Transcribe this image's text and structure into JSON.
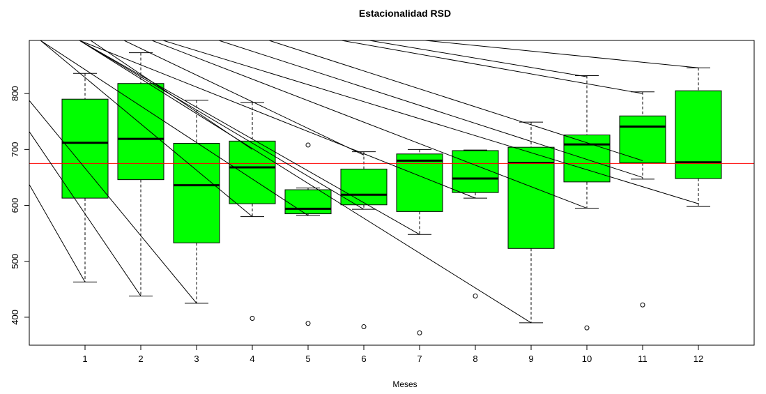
{
  "chart_data": {
    "type": "boxplot",
    "title": "Estacionalidad RSD",
    "xlabel": "Meses",
    "ylabel": "",
    "xlim": [
      0,
      13
    ],
    "ylim": [
      350,
      895
    ],
    "x_ticks": [
      1,
      2,
      3,
      4,
      5,
      6,
      7,
      8,
      9,
      10,
      11,
      12
    ],
    "y_ticks": [
      400,
      500,
      600,
      700,
      800
    ],
    "box_color": "#00ff00",
    "reference_line": {
      "value": 675,
      "color": "#ff0000"
    },
    "categories": [
      "1",
      "2",
      "3",
      "4",
      "5",
      "6",
      "7",
      "8",
      "9",
      "10",
      "11",
      "12"
    ],
    "boxes": [
      {
        "month": 1,
        "min": 463,
        "q1": 613,
        "median": 712,
        "q3": 790,
        "max": 836,
        "outliers": []
      },
      {
        "month": 2,
        "min": 438,
        "q1": 646,
        "median": 719,
        "q3": 818,
        "max": 873,
        "outliers": []
      },
      {
        "month": 3,
        "min": 425,
        "q1": 533,
        "median": 636,
        "q3": 711,
        "max": 788,
        "outliers": []
      },
      {
        "month": 4,
        "min": 580,
        "q1": 603,
        "median": 668,
        "q3": 715,
        "max": 784,
        "outliers": [
          398
        ]
      },
      {
        "month": 5,
        "min": 582,
        "q1": 585,
        "median": 594,
        "q3": 628,
        "max": 631,
        "outliers": [
          708,
          389
        ]
      },
      {
        "month": 6,
        "min": 593,
        "q1": 601,
        "median": 619,
        "q3": 665,
        "max": 696,
        "outliers": [
          383
        ]
      },
      {
        "month": 7,
        "min": 548,
        "q1": 589,
        "median": 680,
        "q3": 692,
        "max": 700,
        "outliers": [
          372
        ]
      },
      {
        "month": 8,
        "min": 613,
        "q1": 623,
        "median": 648,
        "q3": 698,
        "max": 699,
        "outliers": [
          438
        ]
      },
      {
        "month": 9,
        "min": 390,
        "q1": 523,
        "median": 676,
        "q3": 704,
        "max": 749,
        "outliers": []
      },
      {
        "month": 10,
        "min": 595,
        "q1": 642,
        "median": 709,
        "q3": 726,
        "max": 832,
        "outliers": [
          381
        ]
      },
      {
        "month": 11,
        "min": 647,
        "q1": 676,
        "median": 741,
        "q3": 760,
        "max": 803,
        "outliers": [
          422
        ]
      },
      {
        "month": 12,
        "min": 598,
        "q1": 648,
        "median": 677,
        "q3": 805,
        "max": 846,
        "outliers": []
      }
    ],
    "diagonal_lines": [
      {
        "from": [
          -0.6,
          742
        ],
        "to": [
          1,
          463
        ]
      },
      {
        "from": [
          -0.6,
          820
        ],
        "to": [
          2,
          438
        ]
      },
      {
        "from": [
          -0.6,
          860
        ],
        "to": [
          3,
          425
        ]
      },
      {
        "from": [
          0.2,
          895
        ],
        "to": [
          4,
          580
        ]
      },
      {
        "from": [
          0.2,
          895
        ],
        "to": [
          5,
          582
        ]
      },
      {
        "from": [
          0.9,
          895
        ],
        "to": [
          6,
          593
        ]
      },
      {
        "from": [
          0.9,
          895
        ],
        "to": [
          7,
          548
        ]
      },
      {
        "from": [
          0.9,
          895
        ],
        "to": [
          8,
          613
        ]
      },
      {
        "from": [
          0.9,
          895
        ],
        "to": [
          9,
          390
        ]
      },
      {
        "from": [
          1.1,
          895
        ],
        "to": [
          4,
          700
        ]
      },
      {
        "from": [
          1.7,
          895
        ],
        "to": [
          6,
          690
        ]
      },
      {
        "from": [
          2.2,
          895
        ],
        "to": [
          10,
          595
        ]
      },
      {
        "from": [
          2.4,
          895
        ],
        "to": [
          12,
          603
        ]
      },
      {
        "from": [
          3.4,
          895
        ],
        "to": [
          11,
          650
        ]
      },
      {
        "from": [
          4.3,
          895
        ],
        "to": [
          11,
          680
        ]
      },
      {
        "from": [
          5.6,
          895
        ],
        "to": [
          11,
          800
        ]
      },
      {
        "from": [
          6.1,
          895
        ],
        "to": [
          10,
          830
        ]
      },
      {
        "from": [
          7.1,
          895
        ],
        "to": [
          12,
          846
        ]
      }
    ]
  }
}
